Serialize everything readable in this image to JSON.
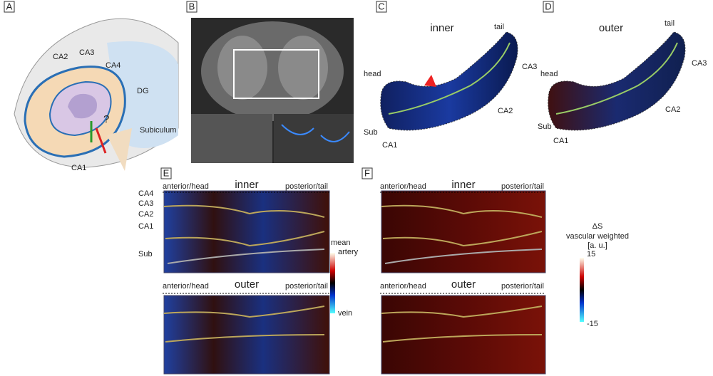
{
  "panels": {
    "A": {
      "letter": "A",
      "labels": [
        "CA2",
        "CA3",
        "CA4",
        "DG",
        "Subiculum",
        "CA1",
        "?"
      ]
    },
    "B": {
      "letter": "B"
    },
    "C": {
      "letter": "C",
      "title": "inner",
      "labels": [
        "tail",
        "head",
        "CA3",
        "CA2",
        "Sub",
        "CA1"
      ]
    },
    "D": {
      "letter": "D",
      "title": "outer",
      "labels": [
        "tail",
        "head",
        "CA3",
        "CA2",
        "Sub",
        "CA1"
      ]
    },
    "E": {
      "letter": "E",
      "top": {
        "left": "anterior/head",
        "title": "inner",
        "right": "posterior/tail"
      },
      "bottom": {
        "left": "anterior/head",
        "title": "outer",
        "right": "posterior/tail"
      },
      "layers": [
        "CA4",
        "CA3",
        "CA2",
        "CA1",
        "Sub"
      ],
      "colorbar": {
        "title": "mean",
        "top": "artery",
        "bottom": "vein"
      }
    },
    "F": {
      "letter": "F",
      "top": {
        "left": "anterior/head",
        "title": "inner",
        "right": "posterior/tail"
      },
      "bottom": {
        "left": "anterior/head",
        "title": "outer",
        "right": "posterior/tail"
      },
      "colorbar": {
        "lines": [
          "ΔS",
          "vascular weighted",
          "[a. u.]"
        ],
        "max": "15",
        "min": "-15"
      }
    }
  }
}
